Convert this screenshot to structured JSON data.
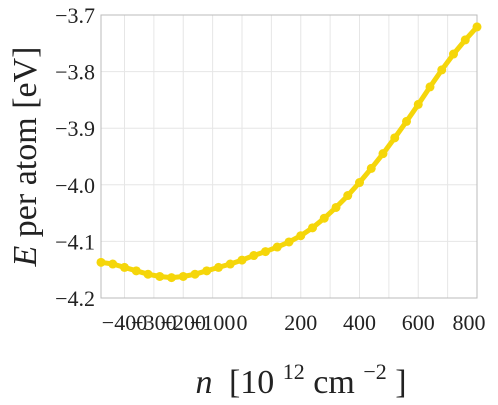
{
  "chart_data": {
    "type": "line",
    "xlabel_var": "n",
    "xlabel_units": "[10",
    "xlabel_sup1": "12",
    "xlabel_units2": "cm",
    "xlabel_sup2": "−2",
    "xlabel_close": "]",
    "ylabel_var": "E",
    "ylabel_text": " per atom [eV]",
    "xlim": [
      -480,
      800
    ],
    "ylim": [
      -4.2,
      -3.7
    ],
    "xticks": [
      -400,
      -300,
      -200,
      -100,
      0,
      100,
      200,
      300,
      400,
      500,
      600,
      700,
      800
    ],
    "xtick_labels": [
      "−400",
      "",
      "−200",
      "",
      "0",
      "",
      "200",
      "",
      "400",
      "",
      "600",
      "",
      "800"
    ],
    "yticks": [
      -4.2,
      -4.1,
      -4.0,
      -3.9,
      -3.8,
      -3.7
    ],
    "ytick_labels": [
      "−4.2",
      "−4.1",
      "−4.0",
      "−3.9",
      "−3.8",
      "−3.7"
    ],
    "xtick_text": [
      "−400",
      "−300",
      "−200",
      "−100",
      "0",
      "200",
      "400",
      "600",
      "800"
    ],
    "xtick_text_values": [
      -400,
      -300,
      -200,
      -100,
      0,
      200,
      400,
      600,
      800
    ],
    "grid": true,
    "color": "#F5D60A",
    "series": [
      {
        "x": [
          -480,
          -440,
          -400,
          -360,
          -320,
          -280,
          -240,
          -200,
          -160,
          -120,
          -80,
          -40,
          0,
          40,
          80,
          120,
          160,
          200,
          240,
          280,
          320,
          360,
          400,
          440,
          480,
          520,
          560,
          600,
          640,
          680,
          720,
          760,
          800
        ],
        "y": [
          -4.137,
          -4.14,
          -4.146,
          -4.152,
          -4.158,
          -4.162,
          -4.164,
          -4.162,
          -4.158,
          -4.152,
          -4.146,
          -4.14,
          -4.133,
          -4.125,
          -4.118,
          -4.11,
          -4.101,
          -4.09,
          -4.076,
          -4.059,
          -4.04,
          -4.019,
          -3.996,
          -3.971,
          -3.945,
          -3.917,
          -3.888,
          -3.858,
          -3.827,
          -3.797,
          -3.769,
          -3.744,
          -3.721
        ]
      }
    ]
  }
}
